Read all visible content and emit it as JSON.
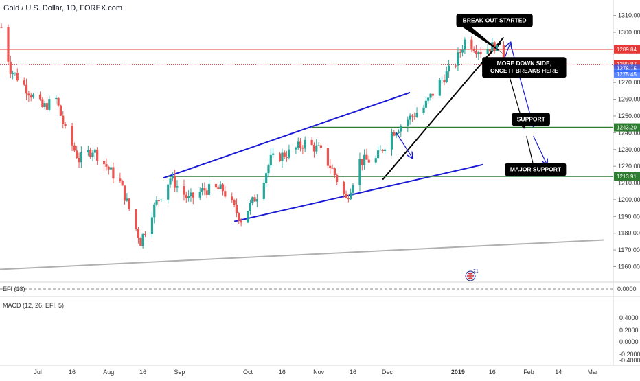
{
  "header": {
    "title": "Gold / U.S. Dollar, 1D, FOREX.com"
  },
  "colors": {
    "up": "#26a69a",
    "down": "#ef5350",
    "resistance": "#e53935",
    "support": "#2e7d32",
    "channel": "#1a1ad6",
    "trend": "#000000",
    "long_trend": "#b0b0b0",
    "label_bg": "#000000"
  },
  "chart_data": {
    "type": "candlestick",
    "title": "Gold / U.S. Dollar, 1D, FOREX.com",
    "y_axis": {
      "min": 1152,
      "max": 1316,
      "ticks": [
        1160,
        1170,
        1180,
        1190,
        1200,
        1210,
        1220,
        1230,
        1240,
        1250,
        1260,
        1270,
        1280,
        1290,
        1300,
        1310
      ]
    },
    "x_ticks": [
      {
        "label": "Jul",
        "date": "2018-07-01"
      },
      {
        "label": "16",
        "date": "2018-07-16"
      },
      {
        "label": "Aug",
        "date": "2018-08-01"
      },
      {
        "label": "16",
        "date": "2018-08-16"
      },
      {
        "label": "Sep",
        "date": "2018-09-01"
      },
      {
        "label": "Oct",
        "date": "2018-10-01"
      },
      {
        "label": "16",
        "date": "2018-10-16"
      },
      {
        "label": "Nov",
        "date": "2018-11-01"
      },
      {
        "label": "16",
        "date": "2018-11-16"
      },
      {
        "label": "Dec",
        "date": "2018-12-01"
      },
      {
        "label": "2019",
        "date": "2019-01-01"
      },
      {
        "label": "16",
        "date": "2019-01-16"
      },
      {
        "label": "Feb",
        "date": "2019-02-01"
      },
      {
        "label": "14",
        "date": "2019-02-14"
      },
      {
        "label": "Mar",
        "date": "2019-03-01"
      }
    ],
    "anchors": [
      {
        "date": "2018-06-15",
        "close": 1303
      },
      {
        "date": "2018-06-19",
        "close": 1278
      },
      {
        "date": "2018-07-03",
        "close": 1255
      },
      {
        "date": "2018-07-09",
        "close": 1260
      },
      {
        "date": "2018-07-13",
        "close": 1241
      },
      {
        "date": "2018-07-19",
        "close": 1224
      },
      {
        "date": "2018-07-25",
        "close": 1230
      },
      {
        "date": "2018-08-06",
        "close": 1210
      },
      {
        "date": "2018-08-15",
        "close": 1175
      },
      {
        "date": "2018-08-20",
        "close": 1193
      },
      {
        "date": "2018-08-28",
        "close": 1213
      },
      {
        "date": "2018-09-05",
        "close": 1200
      },
      {
        "date": "2018-09-12",
        "close": 1206
      },
      {
        "date": "2018-09-20",
        "close": 1206
      },
      {
        "date": "2018-09-28",
        "close": 1188
      },
      {
        "date": "2018-10-05",
        "close": 1203
      },
      {
        "date": "2018-10-11",
        "close": 1224
      },
      {
        "date": "2018-10-19",
        "close": 1228
      },
      {
        "date": "2018-10-26",
        "close": 1234
      },
      {
        "date": "2018-11-01",
        "close": 1230
      },
      {
        "date": "2018-11-07",
        "close": 1218
      },
      {
        "date": "2018-11-13",
        "close": 1200
      },
      {
        "date": "2018-11-19",
        "close": 1223
      },
      {
        "date": "2018-11-26",
        "close": 1224
      },
      {
        "date": "2018-12-03",
        "close": 1240
      },
      {
        "date": "2018-12-10",
        "close": 1248
      },
      {
        "date": "2018-12-17",
        "close": 1255
      },
      {
        "date": "2018-12-24",
        "close": 1270
      },
      {
        "date": "2018-12-31",
        "close": 1282
      },
      {
        "date": "2019-01-04",
        "close": 1295
      },
      {
        "date": "2019-01-11",
        "close": 1289
      },
      {
        "date": "2019-01-17",
        "close": 1292
      },
      {
        "date": "2019-01-21",
        "close": 1280
      }
    ],
    "horizontal_levels": [
      {
        "name": "resistance",
        "value": 1289.84,
        "label": "1289.84",
        "style": "solid"
      },
      {
        "name": "resistance-dotted",
        "value": 1280.87,
        "label": "1280.87",
        "style": "dotted"
      },
      {
        "name": "support",
        "value": 1243.2,
        "label": "1243.20",
        "style": "solid"
      },
      {
        "name": "major-support",
        "value": 1213.91,
        "label": "1213.91",
        "style": "solid"
      }
    ],
    "price_tags": [
      {
        "value": 1278.15,
        "label": "1278.15"
      },
      {
        "value": 1275.45,
        "label": "1275.45"
      }
    ],
    "support_line_starts": [
      {
        "name": "support",
        "date": "2018-10-29"
      },
      {
        "name": "major-support",
        "date": "2018-08-27"
      }
    ],
    "trendlines": [
      {
        "name": "channel-upper",
        "kind": "channel",
        "from": {
          "date": "2018-08-25",
          "price": 1213
        },
        "to": {
          "date": "2018-12-11",
          "price": 1264
        }
      },
      {
        "name": "channel-lower",
        "kind": "channel",
        "from": {
          "date": "2018-09-25",
          "price": 1187
        },
        "to": {
          "date": "2019-01-12",
          "price": 1221
        }
      },
      {
        "name": "uptrend",
        "kind": "trend",
        "from": {
          "date": "2018-11-29",
          "price": 1212
        },
        "to": {
          "date": "2019-01-21",
          "price": 1297
        }
      },
      {
        "name": "small-wedge",
        "kind": "trend",
        "from": {
          "date": "2019-01-12",
          "price": 1283
        },
        "to": {
          "date": "2019-01-20",
          "price": 1294
        }
      },
      {
        "name": "long-trend",
        "kind": "long",
        "from": {
          "date": "2018-05-25",
          "price": 1157
        },
        "to": {
          "date": "2019-03-06",
          "price": 1176
        }
      }
    ],
    "arrows": [
      {
        "name": "arrow-blue-dec",
        "kind": "channel",
        "from": {
          "date": "2018-12-05",
          "price": 1240
        },
        "to": {
          "date": "2018-12-12",
          "price": 1225
        }
      },
      {
        "name": "arrow-blue-1",
        "kind": "channel",
        "from": {
          "date": "2019-01-21",
          "price": 1283
        },
        "to": {
          "date": "2019-01-24",
          "price": 1294
        }
      },
      {
        "name": "arrow-blue-2",
        "kind": "channel",
        "from": {
          "date": "2019-01-24",
          "price": 1293
        },
        "to": {
          "date": "2019-02-03",
          "price": 1244
        }
      },
      {
        "name": "arrow-blue-3",
        "kind": "channel",
        "from": {
          "date": "2019-02-03",
          "price": 1238
        },
        "to": {
          "date": "2019-02-09",
          "price": 1221
        }
      },
      {
        "name": "arrow-black-1",
        "kind": "trend",
        "from": {
          "date": "2019-01-20",
          "price": 1281
        },
        "to": {
          "date": "2019-01-23",
          "price": 1278
        }
      },
      {
        "name": "arrow-black-2",
        "kind": "trend",
        "from": {
          "date": "2019-01-23",
          "price": 1276
        },
        "to": {
          "date": "2019-01-30",
          "price": 1243
        }
      },
      {
        "name": "arrow-black-3",
        "kind": "trend",
        "from": {
          "date": "2019-01-31",
          "price": 1238
        },
        "to": {
          "date": "2019-02-04",
          "price": 1215
        }
      }
    ],
    "annotations": [
      {
        "name": "callout-breakout",
        "text_lines": [
          "BREAK-OUT STARTED"
        ],
        "box": {
          "date": "2019-01-17",
          "price": 1307
        },
        "pointer": {
          "date": "2019-01-21",
          "price": 1287
        }
      },
      {
        "name": "callout-downside",
        "text_lines": [
          "MORE DOWN SIDE,",
          "ONCE IT BREAKS HERE"
        ],
        "box": {
          "date": "2019-01-30",
          "price": 1279
        },
        "pointer": {
          "date": "2019-01-22",
          "price": 1274
        }
      },
      {
        "name": "label-support",
        "text_lines": [
          "SUPPORT"
        ],
        "box": {
          "date": "2019-02-02",
          "price": 1248
        }
      },
      {
        "name": "label-major-support",
        "text_lines": [
          "MAJOR SUPPORT"
        ],
        "box": {
          "date": "2019-02-04",
          "price": 1218
        }
      }
    ]
  },
  "efi_pane": {
    "label": "EFI (13)",
    "tick": "0.0000"
  },
  "macd_pane": {
    "label": "MACD (12, 26, EFI, 5)",
    "ticks": [
      "0.4000",
      "0.2000",
      "0.0000",
      "-0.2000",
      "-0.4000"
    ]
  },
  "event_badge": {
    "label": "21"
  }
}
